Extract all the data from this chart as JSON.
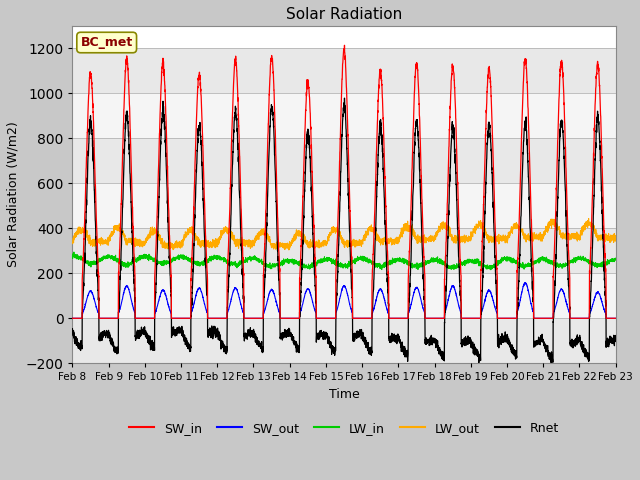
{
  "title": "Solar Radiation",
  "xlabel": "Time",
  "ylabel": "Solar Radiation (W/m2)",
  "ylim": [
    -200,
    1300
  ],
  "yticks": [
    -200,
    0,
    200,
    400,
    600,
    800,
    1000,
    1200
  ],
  "n_days": 15,
  "n_points_per_day": 288,
  "label_box": "BC_met",
  "colors": {
    "SW_in": "#ff0000",
    "SW_out": "#0000ff",
    "LW_in": "#00cc00",
    "LW_out": "#ffaa00",
    "Rnet": "#000000"
  },
  "date_labels": [
    "Feb 8",
    "Feb 9",
    "Feb 10",
    "Feb 11",
    "Feb 12",
    "Feb 13",
    "Feb 14",
    "Feb 15",
    "Feb 16",
    "Feb 17",
    "Feb 18",
    "Feb 19",
    "Feb 20",
    "Feb 21",
    "Feb 22",
    "Feb 23"
  ],
  "fig_bg": "#c8c8c8",
  "plot_bg": "#ffffff"
}
